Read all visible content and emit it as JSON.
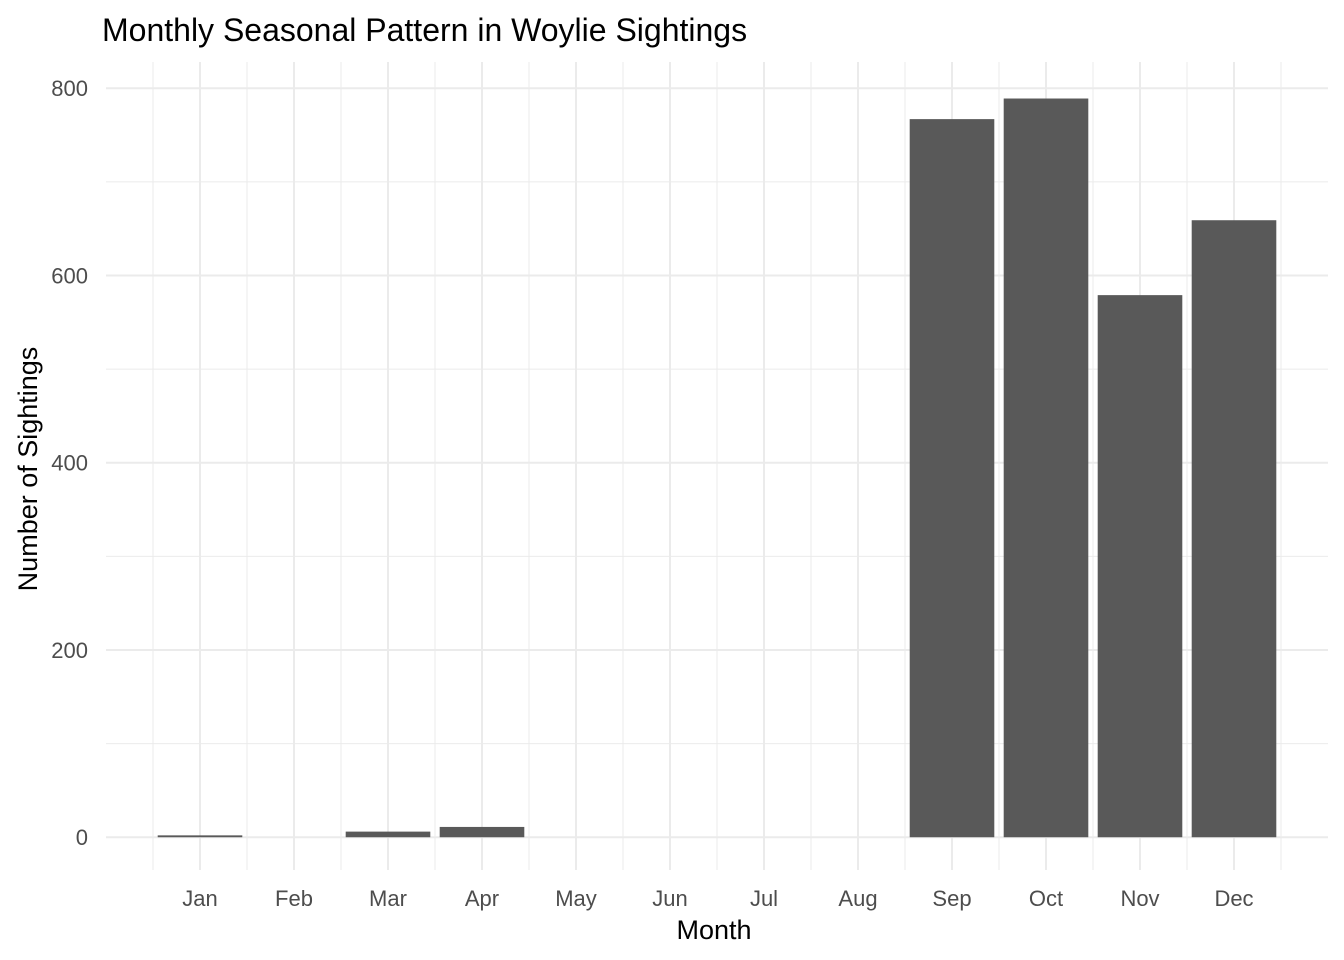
{
  "chart_data": {
    "type": "bar",
    "title": "Monthly Seasonal Pattern in Woylie Sightings",
    "xlabel": "Month",
    "ylabel": "Number of Sightings",
    "categories": [
      "Jan",
      "Feb",
      "Mar",
      "Apr",
      "May",
      "Jun",
      "Jul",
      "Aug",
      "Sep",
      "Oct",
      "Nov",
      "Dec"
    ],
    "values": [
      2,
      0,
      6,
      11,
      0,
      0,
      0,
      0,
      767,
      789,
      579,
      659
    ],
    "ylim": [
      -35,
      828
    ],
    "yticks": [
      0,
      200,
      400,
      600,
      800
    ],
    "grid": true,
    "bar_color": "#595959",
    "grid_color": "#ebebeb"
  }
}
